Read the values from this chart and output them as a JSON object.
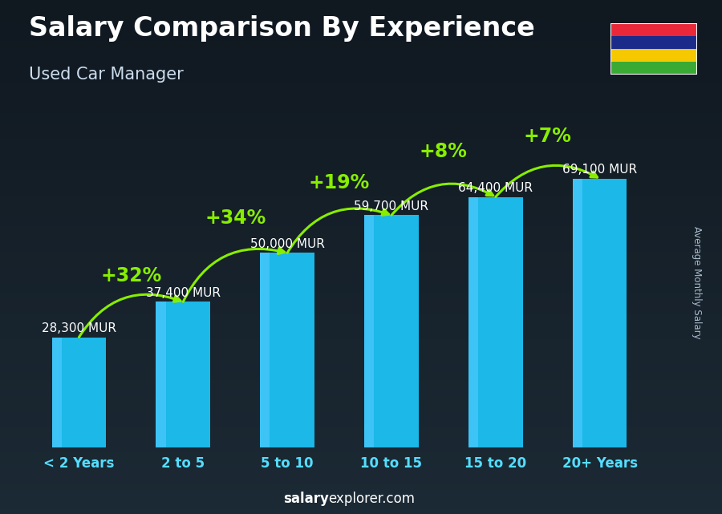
{
  "title": "Salary Comparison By Experience",
  "subtitle": "Used Car Manager",
  "categories": [
    "< 2 Years",
    "2 to 5",
    "5 to 10",
    "10 to 15",
    "15 to 20",
    "20+ Years"
  ],
  "values": [
    28300,
    37400,
    50000,
    59700,
    64400,
    69100
  ],
  "value_labels": [
    "28,300 MUR",
    "37,400 MUR",
    "50,000 MUR",
    "59,700 MUR",
    "64,400 MUR",
    "69,100 MUR"
  ],
  "pct_changes": [
    null,
    "+32%",
    "+34%",
    "+19%",
    "+8%",
    "+7%"
  ],
  "bar_color_main": "#1BB8E8",
  "bar_color_light": "#55CCFF",
  "pct_color": "#88EE00",
  "label_color": "#FFFFFF",
  "bg_top": "#2a3a4a",
  "bg_bottom": "#111820",
  "ylabel": "Average Monthly Salary",
  "footer_normal": "explorer.com",
  "footer_bold": "salary",
  "ylim": [
    0,
    82000
  ],
  "bar_width": 0.52,
  "title_fontsize": 24,
  "subtitle_fontsize": 15,
  "tick_fontsize": 12,
  "value_label_fontsize": 11,
  "pct_fontsize": 17,
  "flag_colors": [
    "#EA2839",
    "#1A2B8A",
    "#F5C800",
    "#3AAA35"
  ],
  "arc_heights": [
    0,
    44000,
    59000,
    68000,
    76000,
    80000
  ],
  "arrow_rad": -0.4
}
